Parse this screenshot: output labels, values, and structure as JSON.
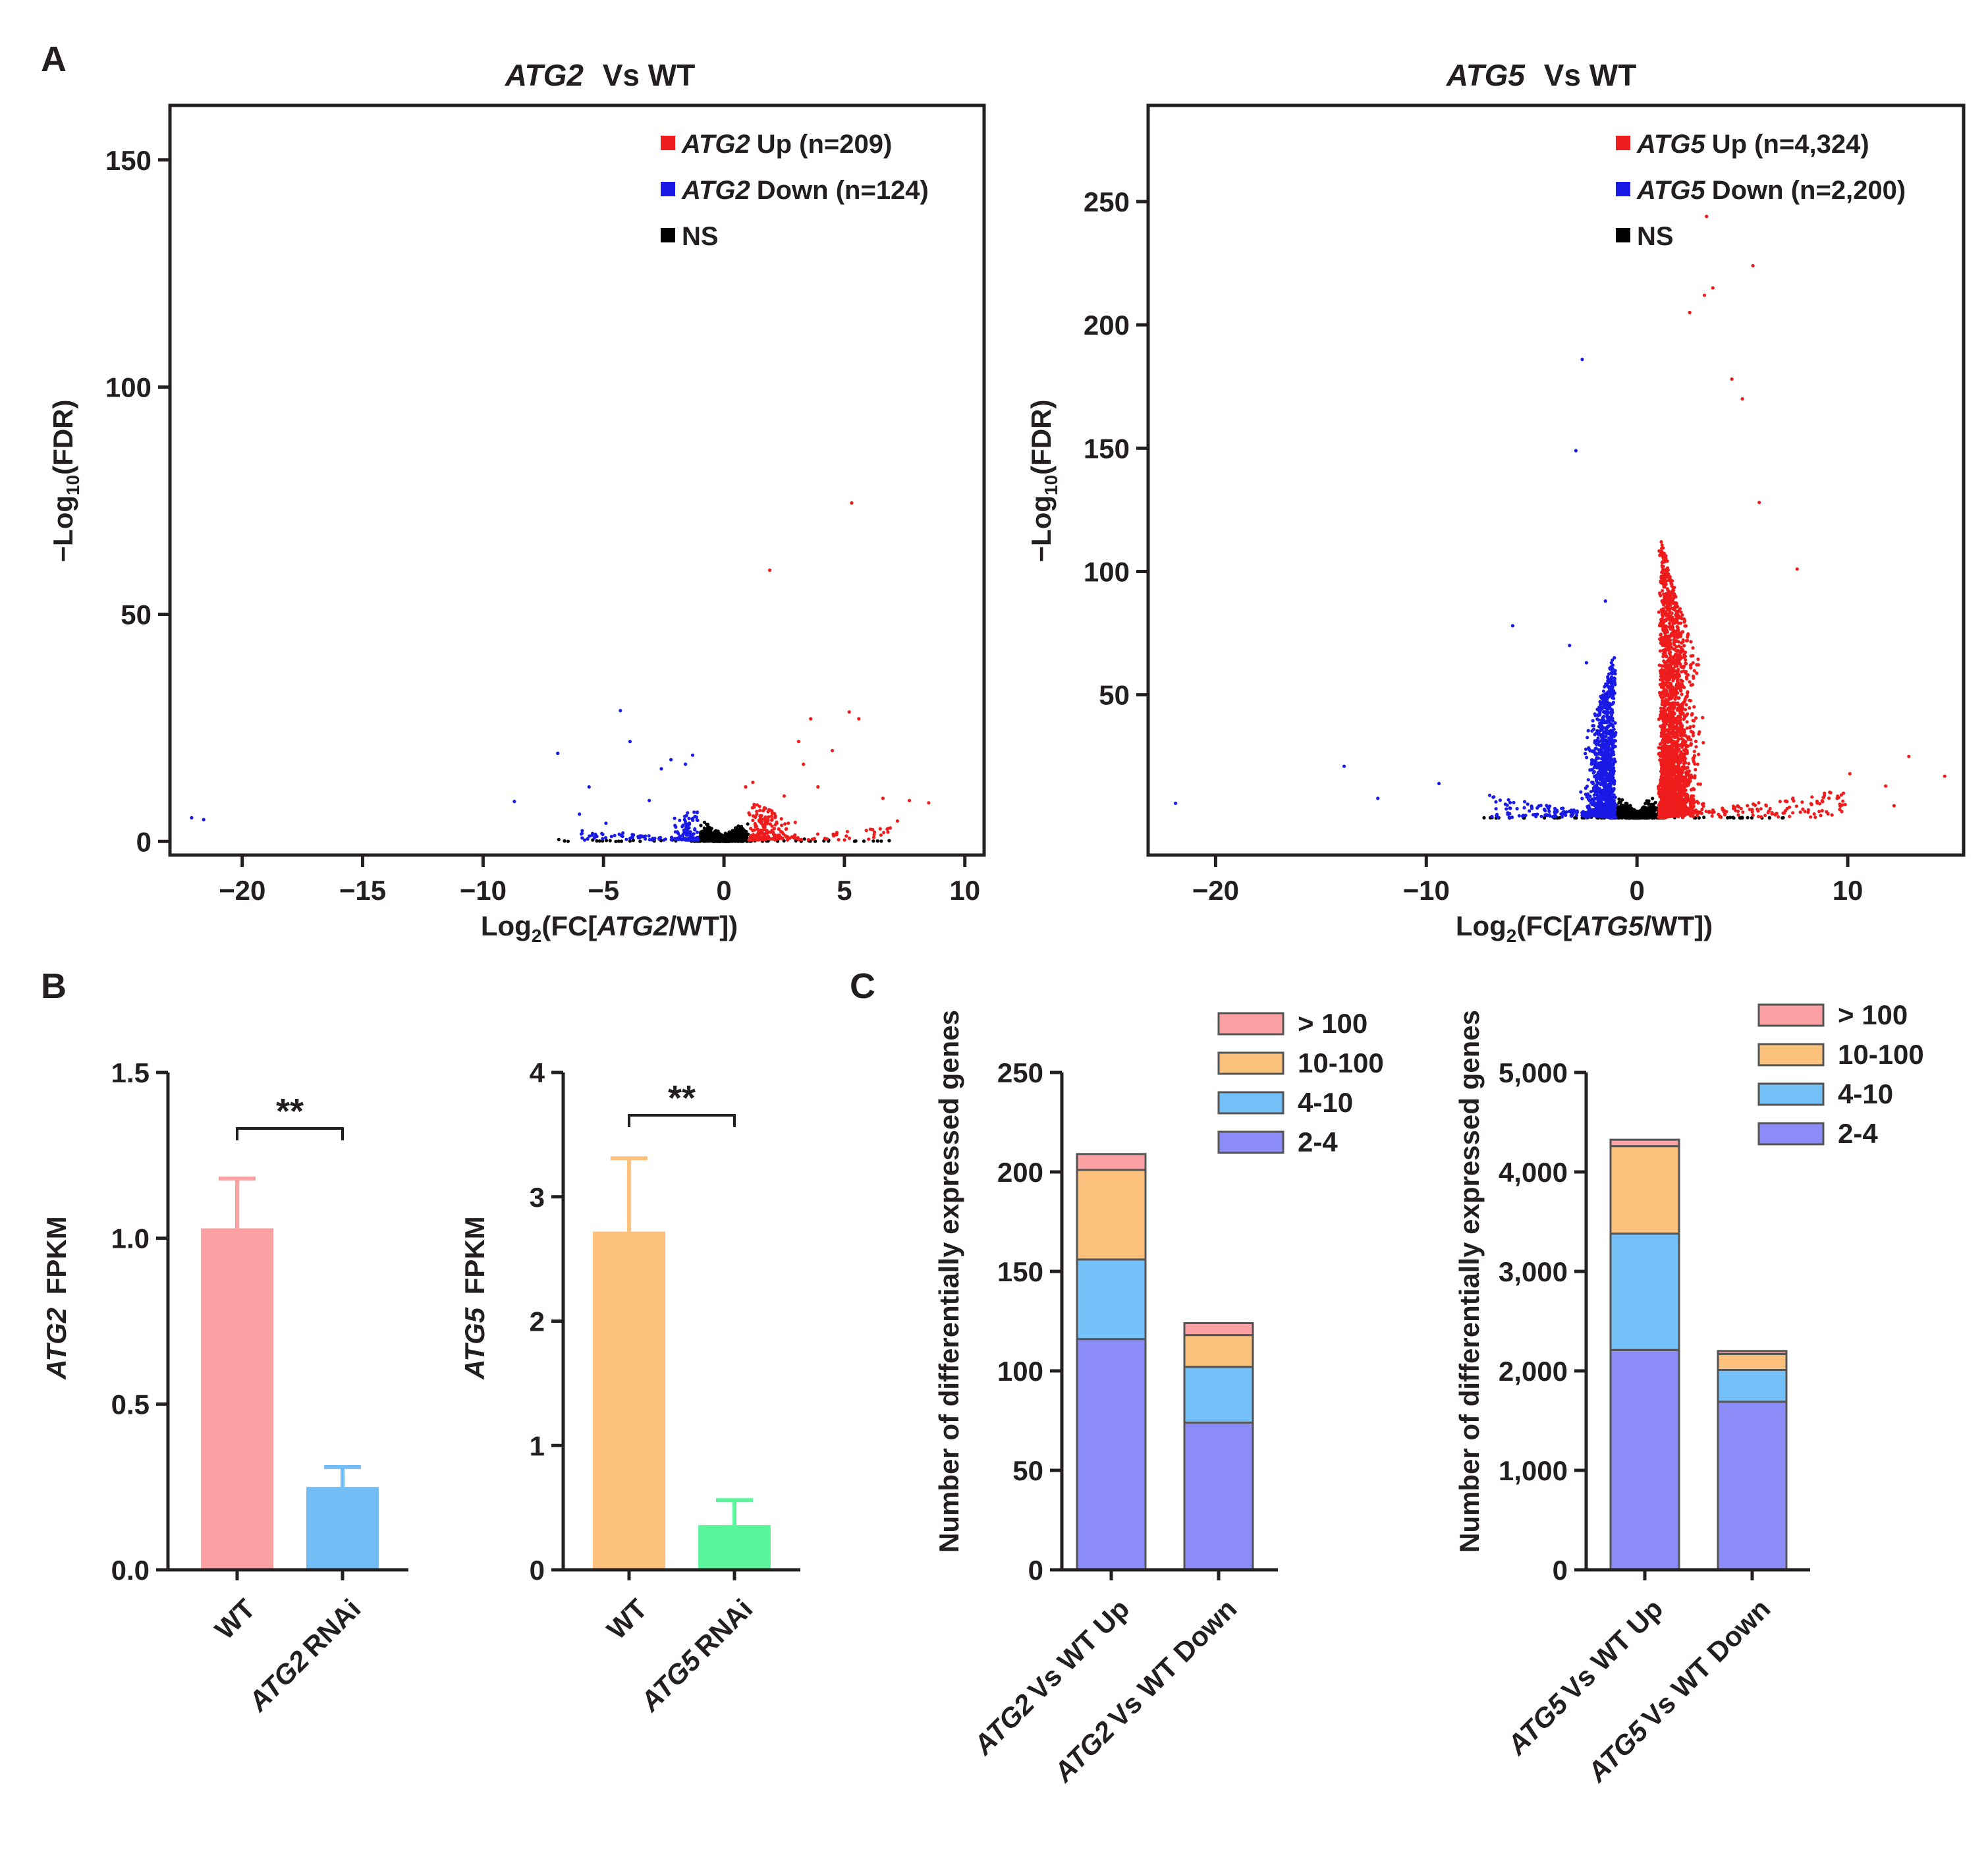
{
  "chart_data": [
    {
      "panel": "A",
      "type": "scatter",
      "subtype": "volcano",
      "title_gene": "ATG2",
      "title_suffix": "Vs WT",
      "xlabel": {
        "pre": "Log",
        "sub": "2",
        "mid": "(FC[",
        "gene": "ATG2",
        "post": "/WT])"
      },
      "ylabel": {
        "pre": "−Log",
        "sub": "10",
        "post": "(FDR)"
      },
      "xlim": [
        -23,
        10.8
      ],
      "ylim": [
        -3,
        162
      ],
      "xticks": [
        -20,
        -15,
        -10,
        -5,
        0,
        5,
        10
      ],
      "xtick_labels": [
        "−20",
        "−15",
        "−10",
        "−5",
        "0",
        "5",
        "10"
      ],
      "yticks": [
        0,
        50,
        100,
        150
      ],
      "ytick_labels": [
        "0",
        "50",
        "100",
        "150"
      ],
      "legend": [
        {
          "gene": "ATG2",
          "label": "Up (n=209)",
          "color": "#ee1c1c"
        },
        {
          "gene": "ATG2",
          "label": "Down (n=124)",
          "color": "#1a1ae6"
        },
        {
          "gene": "",
          "label": "NS",
          "color": "#000000"
        }
      ],
      "series": [
        {
          "name": "Up",
          "n": 209,
          "color": "#ee1c1c",
          "max_x": 9.3,
          "points": [
            [
              5.3,
              74.5
            ],
            [
              1.9,
              59.7
            ],
            [
              3.6,
              27
            ],
            [
              5.2,
              28.5
            ],
            [
              5.6,
              27
            ],
            [
              3.1,
              22
            ],
            [
              4.5,
              20
            ],
            [
              3.3,
              17
            ],
            [
              6.6,
              9.5
            ],
            [
              7.7,
              9
            ],
            [
              8.5,
              8.5
            ],
            [
              7.2,
              4.5
            ],
            [
              2.5,
              10
            ],
            [
              3.9,
              12
            ],
            [
              1.2,
              13
            ],
            [
              0.9,
              12
            ]
          ]
        },
        {
          "name": "Down",
          "n": 124,
          "color": "#1a1ae6",
          "min_x": -22.1,
          "points": [
            [
              -22.1,
              5.2
            ],
            [
              -21.6,
              4.8
            ],
            [
              -8.7,
              8.8
            ],
            [
              -6.9,
              19.4
            ],
            [
              -4.3,
              28.8
            ],
            [
              -3.9,
              22
            ],
            [
              -2.2,
              18
            ],
            [
              -1.6,
              17
            ],
            [
              -1.3,
              19
            ],
            [
              -2.6,
              16
            ],
            [
              -5.6,
              12
            ],
            [
              -6.0,
              6
            ],
            [
              -4.9,
              4
            ],
            [
              -3.1,
              9
            ]
          ]
        },
        {
          "name": "NS",
          "color": "#000000",
          "x_range": [
            -7.2,
            7.0
          ]
        }
      ]
    },
    {
      "panel": "A",
      "type": "scatter",
      "subtype": "volcano",
      "title_gene": "ATG5",
      "title_suffix": "Vs WT",
      "xlabel": {
        "pre": "Log",
        "sub": "2",
        "mid": "(FC[",
        "gene": "ATG5",
        "post": "/WT])"
      },
      "ylabel": {
        "pre": "−Log",
        "sub": "10",
        "post": "(FDR)"
      },
      "xlim": [
        -23.2,
        15.5
      ],
      "ylim": [
        -15,
        289
      ],
      "xticks": [
        -20,
        -10,
        0,
        10
      ],
      "xtick_labels": [
        "−20",
        "−10",
        "0",
        "10"
      ],
      "yticks": [
        50,
        100,
        150,
        200,
        250
      ],
      "ytick_labels": [
        "50",
        "100",
        "150",
        "200",
        "250"
      ],
      "legend": [
        {
          "gene": "ATG5",
          "label": "Up (n=4,324)",
          "color": "#ee1c1c"
        },
        {
          "gene": "ATG5",
          "label": "Down (n=2,200)",
          "color": "#1a1ae6"
        },
        {
          "gene": "",
          "label": "NS",
          "color": "#000000"
        }
      ],
      "series": [
        {
          "name": "Up",
          "n": 4324,
          "color": "#ee1c1c",
          "max_x": 14.7,
          "points": [
            [
              3.3,
              244
            ],
            [
              5.5,
              224
            ],
            [
              3.6,
              215
            ],
            [
              3.2,
              212
            ],
            [
              2.5,
              205
            ],
            [
              4.5,
              178
            ],
            [
              5.0,
              170
            ],
            [
              5.8,
              128
            ],
            [
              7.6,
              101
            ],
            [
              12.9,
              25
            ],
            [
              14.6,
              17
            ],
            [
              11.8,
              13
            ],
            [
              10.1,
              18
            ],
            [
              9.5,
              8
            ],
            [
              12.2,
              5
            ]
          ]
        },
        {
          "name": "Down",
          "n": 2200,
          "color": "#1a1ae6",
          "min_x": -22.0,
          "points": [
            [
              -2.6,
              186
            ],
            [
              -2.9,
              149
            ],
            [
              -1.5,
              88
            ],
            [
              -5.9,
              78
            ],
            [
              -13.9,
              21
            ],
            [
              -9.4,
              14
            ],
            [
              -12.3,
              8
            ],
            [
              -21.9,
              6
            ],
            [
              -3.2,
              70
            ],
            [
              -2.4,
              63
            ]
          ]
        },
        {
          "name": "NS",
          "color": "#000000",
          "x_range": [
            -7.3,
            7.2
          ]
        }
      ]
    },
    {
      "panel": "B",
      "type": "bar",
      "gene": "ATG2",
      "ylabel_gene": "ATG2",
      "ylabel_rest": "FPKM",
      "categories": [
        {
          "gene": "",
          "label": "WT"
        },
        {
          "gene": "ATG2",
          "label": "RNAi"
        }
      ],
      "values": [
        1.03,
        0.25
      ],
      "errors": [
        0.15,
        0.06
      ],
      "colors": [
        "#fca1a3",
        "#72bdf5"
      ],
      "ylim": [
        0,
        1.5
      ],
      "yticks": [
        0,
        0.5,
        1.0,
        1.5
      ],
      "ytick_labels": [
        "0.0",
        "0.5",
        "1.0",
        "1.5"
      ],
      "significance": "**"
    },
    {
      "panel": "B",
      "type": "bar",
      "gene": "ATG5",
      "ylabel_gene": "ATG5",
      "ylabel_rest": "FPKM",
      "categories": [
        {
          "gene": "",
          "label": "WT"
        },
        {
          "gene": "ATG5",
          "label": "RNAi"
        }
      ],
      "values": [
        2.72,
        0.36
      ],
      "errors": [
        0.59,
        0.2
      ],
      "colors": [
        "#fcc27d",
        "#5bf59b"
      ],
      "ylim": [
        0,
        4
      ],
      "yticks": [
        0,
        1,
        2,
        3,
        4
      ],
      "ytick_labels": [
        "0",
        "1",
        "2",
        "3",
        "4"
      ],
      "significance": "**"
    },
    {
      "panel": "C",
      "type": "bar",
      "stacked": true,
      "ylabel": "Number of differentially expressed genes",
      "categories": [
        {
          "gene": "ATG2",
          "label": "Vs WT Up"
        },
        {
          "gene": "ATG2",
          "label": "Vs WT Down"
        }
      ],
      "ylim": [
        0,
        250
      ],
      "yticks": [
        0,
        50,
        100,
        150,
        200,
        250
      ],
      "ytick_labels": [
        "0",
        "50",
        "100",
        "150",
        "200",
        "250"
      ],
      "series": [
        {
          "name": "2-4",
          "color": "#8c8cf8",
          "values": [
            116,
            74
          ]
        },
        {
          "name": "4-10",
          "color": "#74c0f8",
          "values": [
            40,
            28
          ]
        },
        {
          "name": "10-100",
          "color": "#fcc27d",
          "values": [
            45,
            16
          ]
        },
        {
          "name": "> 100",
          "color": "#fca1a3",
          "values": [
            8,
            6
          ]
        }
      ]
    },
    {
      "panel": "C",
      "type": "bar",
      "stacked": true,
      "ylabel": "Number of differentially expressed genes",
      "categories": [
        {
          "gene": "ATG5",
          "label": "Vs WT Up"
        },
        {
          "gene": "ATG5",
          "label": "Vs WT Down"
        }
      ],
      "ylim": [
        0,
        5000
      ],
      "yticks": [
        0,
        1000,
        2000,
        3000,
        4000,
        5000
      ],
      "ytick_labels": [
        "0",
        "1,000",
        "2,000",
        "3,000",
        "4,000",
        "5,000"
      ],
      "series": [
        {
          "name": "2-4",
          "color": "#8c8cf8",
          "values": [
            2210,
            1690
          ]
        },
        {
          "name": "4-10",
          "color": "#74c0f8",
          "values": [
            1170,
            320
          ]
        },
        {
          "name": "10-100",
          "color": "#fcc27d",
          "values": [
            880,
            160
          ]
        },
        {
          "name": "> 100",
          "color": "#fca1a3",
          "values": [
            64,
            30
          ]
        }
      ]
    }
  ],
  "panel_letters": [
    "A",
    "B",
    "C"
  ]
}
